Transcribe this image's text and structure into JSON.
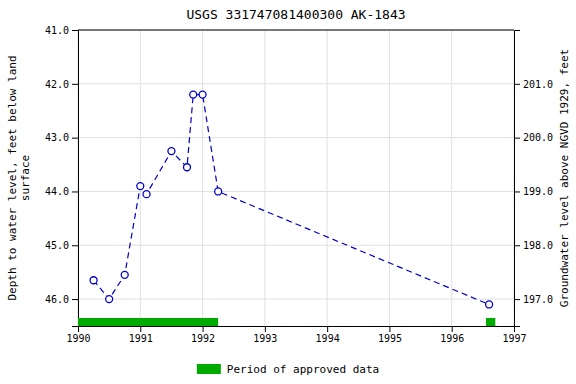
{
  "chart_data": {
    "type": "line",
    "title": "USGS 331747081400300 AK-1843",
    "ylabel": "Depth to water level, feet below land\nsurface",
    "y2label": "Groundwater level above NGVD 1929, feet",
    "x": [
      1990.25,
      1990.5,
      1990.75,
      1991.0,
      1991.1,
      1991.5,
      1991.75,
      1991.85,
      1992.0,
      1992.25,
      1996.6
    ],
    "series": [
      {
        "type": "line",
        "color": "#0000cc",
        "line_style": "dashed",
        "marker": "circle",
        "values": [
          45.65,
          46.0,
          45.55,
          43.9,
          44.05,
          43.25,
          43.55,
          42.2,
          42.2,
          44.0,
          46.1
        ]
      },
      {
        "type": "span",
        "name": "Period of approved data",
        "color": "#00aa00",
        "periods": [
          [
            1990.0,
            1992.25
          ],
          [
            1996.55,
            1996.7
          ]
        ]
      }
    ],
    "xlim": [
      1990.0,
      1997.0
    ],
    "xticks": [
      1990,
      1991,
      1992,
      1993,
      1994,
      1995,
      1996,
      1997
    ],
    "ylim": [
      46.5,
      41.0
    ],
    "yticks": [
      {
        "value": 41.0,
        "label": "41.0"
      },
      {
        "value": 42.0,
        "label": "42.0"
      },
      {
        "value": 43.0,
        "label": "43.0"
      },
      {
        "value": 44.0,
        "label": "44.0"
      },
      {
        "value": 45.0,
        "label": "45.0"
      },
      {
        "value": 46.0,
        "label": "46.0"
      }
    ],
    "y2lim": [
      196.5,
      202.0
    ],
    "y2ticks": [
      {
        "value": 197.0,
        "label": "197.0"
      },
      {
        "value": 198.0,
        "label": "198.0"
      },
      {
        "value": 199.0,
        "label": "199.0"
      },
      {
        "value": 200.0,
        "label": "200.0"
      },
      {
        "value": 201.0,
        "label": "201.0"
      }
    ],
    "grid": true,
    "legend": "bottom"
  }
}
